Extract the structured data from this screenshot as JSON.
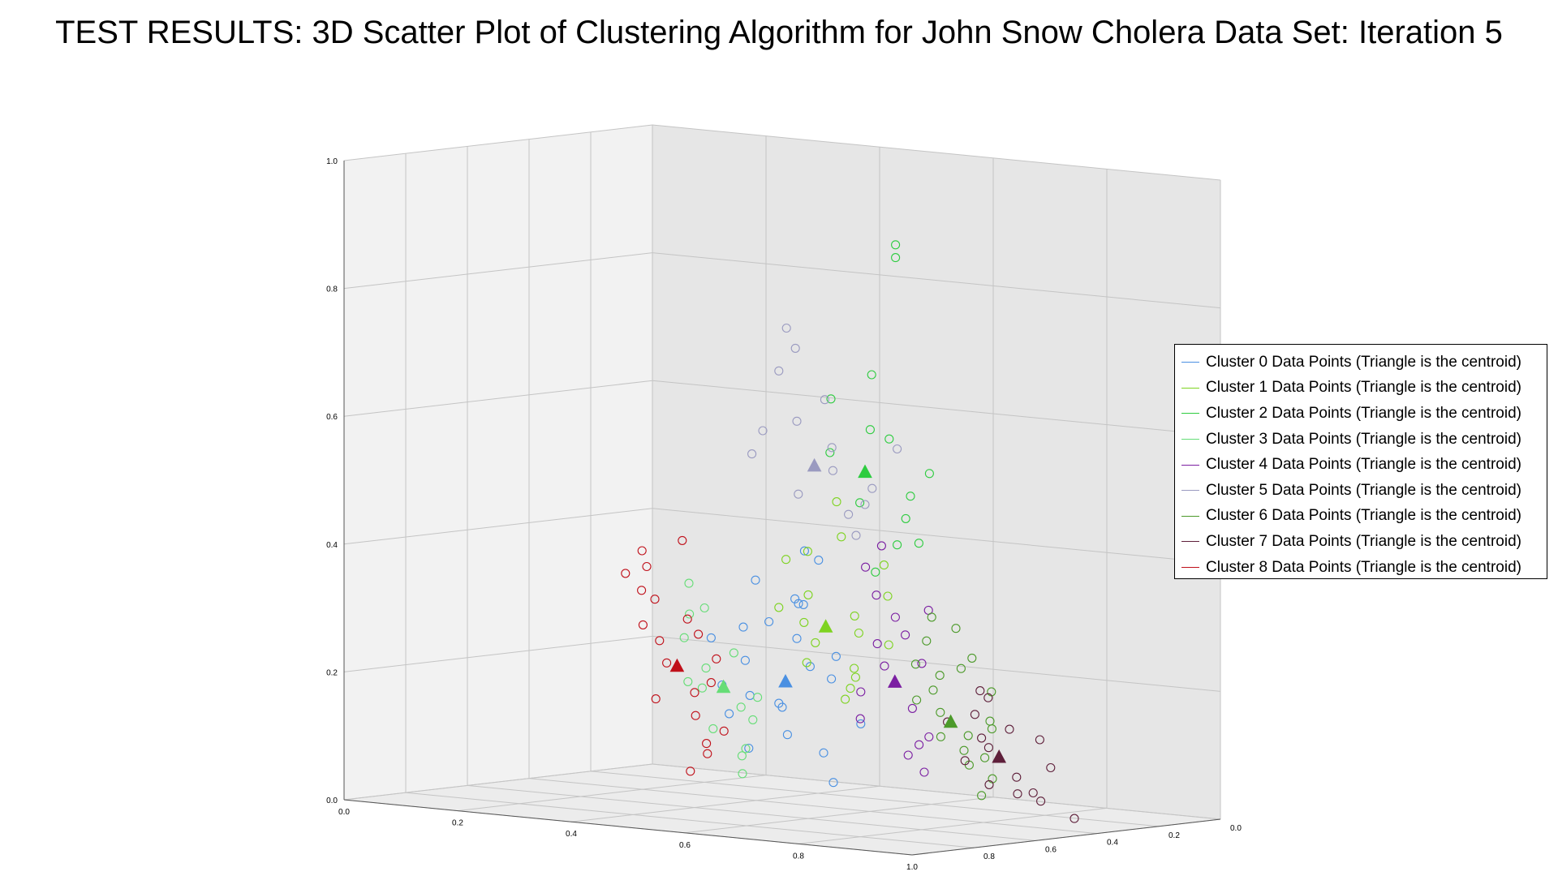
{
  "chart_data": {
    "type": "scatter",
    "title": "TEST RESULTS: 3D Scatter Plot of Clustering Algorithm for John Snow Cholera Data Set: Iteration 5",
    "xlim": [
      0,
      1
    ],
    "ylim": [
      0,
      1
    ],
    "zlim": [
      0,
      1
    ],
    "x_ticks": [
      "0.0",
      "0.2",
      "0.4",
      "0.6",
      "0.8",
      "1.0"
    ],
    "y_ticks": [
      "0.0",
      "0.2",
      "0.4",
      "0.6",
      "0.8"
    ],
    "z_ticks": [
      "0.0",
      "0.2",
      "0.4",
      "0.6",
      "0.8",
      "1.0"
    ],
    "grid": true,
    "legend_position": "right",
    "series": [
      {
        "name": "Cluster 0 Data Points (Triangle is the centroid)",
        "color": "#4a90e2",
        "centroid": [
          0.56,
          0.4,
          0.21
        ],
        "points": [
          [
            0.52,
            0.42,
            0.3
          ],
          [
            0.58,
            0.4,
            0.28
          ],
          [
            0.61,
            0.35,
            0.34
          ],
          [
            0.48,
            0.45,
            0.36
          ],
          [
            0.55,
            0.48,
            0.41
          ],
          [
            0.5,
            0.38,
            0.24
          ],
          [
            0.63,
            0.42,
            0.22
          ],
          [
            0.57,
            0.36,
            0.18
          ],
          [
            0.45,
            0.42,
            0.15
          ],
          [
            0.52,
            0.48,
            0.12
          ],
          [
            0.6,
            0.45,
            0.1
          ],
          [
            0.66,
            0.38,
            0.26
          ],
          [
            0.47,
            0.36,
            0.2
          ],
          [
            0.54,
            0.3,
            0.3
          ],
          [
            0.59,
            0.5,
            0.05
          ],
          [
            0.5,
            0.5,
            0.16
          ],
          [
            0.62,
            0.32,
            0.35
          ],
          [
            0.44,
            0.38,
            0.27
          ],
          [
            0.57,
            0.44,
            0.33
          ],
          [
            0.66,
            0.46,
            0.15
          ],
          [
            0.53,
            0.34,
            0.19
          ],
          [
            0.49,
            0.41,
            0.1
          ],
          [
            0.64,
            0.36,
            0.41
          ],
          [
            0.56,
            0.48,
            0.23
          ]
        ]
      },
      {
        "name": "Cluster 1 Data Points (Triangle is the centroid)",
        "color": "#7ed321",
        "centroid": [
          0.62,
          0.42,
          0.3
        ],
        "points": [
          [
            0.6,
            0.4,
            0.35
          ],
          [
            0.66,
            0.44,
            0.32
          ],
          [
            0.58,
            0.46,
            0.27
          ],
          [
            0.7,
            0.38,
            0.3
          ],
          [
            0.64,
            0.48,
            0.22
          ],
          [
            0.55,
            0.42,
            0.4
          ],
          [
            0.68,
            0.36,
            0.45
          ],
          [
            0.62,
            0.5,
            0.2
          ],
          [
            0.72,
            0.44,
            0.28
          ],
          [
            0.57,
            0.36,
            0.33
          ],
          [
            0.65,
            0.4,
            0.5
          ],
          [
            0.6,
            0.52,
            0.18
          ],
          [
            0.74,
            0.4,
            0.36
          ],
          [
            0.63,
            0.34,
            0.25
          ],
          [
            0.69,
            0.48,
            0.4
          ],
          [
            0.56,
            0.46,
            0.3
          ],
          [
            0.67,
            0.42,
            0.24
          ],
          [
            0.61,
            0.38,
            0.42
          ]
        ]
      },
      {
        "name": "Cluster 2 Data Points (Triangle is the centroid)",
        "color": "#2ecc40",
        "centroid": [
          0.7,
          0.4,
          0.55
        ],
        "points": [
          [
            0.72,
            0.38,
            0.62
          ],
          [
            0.68,
            0.42,
            0.5
          ],
          [
            0.75,
            0.44,
            0.48
          ],
          [
            0.66,
            0.36,
            0.58
          ],
          [
            0.78,
            0.4,
            0.52
          ],
          [
            0.71,
            0.46,
            0.6
          ],
          [
            0.8,
            0.32,
            0.45
          ],
          [
            0.64,
            0.4,
            0.66
          ],
          [
            0.74,
            0.36,
            0.4
          ],
          [
            0.86,
            0.28,
            0.46
          ],
          [
            0.69,
            0.44,
            0.7
          ],
          [
            0.77,
            0.48,
            0.55
          ],
          [
            0.96,
            0.02,
            0.95
          ],
          [
            0.96,
            0.02,
            0.93
          ]
        ]
      },
      {
        "name": "Cluster 3 Data Points (Triangle is the centroid)",
        "color": "#66dd77",
        "centroid": [
          0.44,
          0.42,
          0.19
        ],
        "points": [
          [
            0.42,
            0.4,
            0.22
          ],
          [
            0.46,
            0.44,
            0.16
          ],
          [
            0.4,
            0.46,
            0.12
          ],
          [
            0.48,
            0.38,
            0.25
          ],
          [
            0.44,
            0.48,
            0.08
          ],
          [
            0.38,
            0.42,
            0.3
          ],
          [
            0.5,
            0.42,
            0.18
          ],
          [
            0.41,
            0.36,
            0.2
          ],
          [
            0.47,
            0.46,
            0.14
          ],
          [
            0.36,
            0.44,
            0.26
          ],
          [
            0.45,
            0.34,
            0.32
          ],
          [
            0.43,
            0.5,
            0.05
          ],
          [
            0.39,
            0.4,
            0.35
          ],
          [
            0.49,
            0.4,
            0.1
          ],
          [
            0.37,
            0.48,
            0.18
          ]
        ]
      },
      {
        "name": "Cluster 4 Data Points (Triangle is the centroid)",
        "color": "#7b1fa2",
        "centroid": [
          0.72,
          0.46,
          0.22
        ],
        "points": [
          [
            0.7,
            0.44,
            0.28
          ],
          [
            0.74,
            0.48,
            0.18
          ],
          [
            0.68,
            0.5,
            0.24
          ],
          [
            0.76,
            0.42,
            0.3
          ],
          [
            0.72,
            0.4,
            0.36
          ],
          [
            0.66,
            0.46,
            0.2
          ],
          [
            0.78,
            0.46,
            0.14
          ],
          [
            0.73,
            0.52,
            0.12
          ],
          [
            0.69,
            0.42,
            0.4
          ],
          [
            0.8,
            0.4,
            0.26
          ],
          [
            0.71,
            0.48,
            0.32
          ],
          [
            0.75,
            0.5,
            0.08
          ],
          [
            0.67,
            0.44,
            0.16
          ],
          [
            0.79,
            0.44,
            0.34
          ],
          [
            0.74,
            0.38,
            0.44
          ],
          [
            0.7,
            0.54,
            0.1
          ]
        ]
      },
      {
        "name": "Cluster 5 Data Points (Triangle is the centroid)",
        "color": "#9a9ac0",
        "centroid": [
          0.6,
          0.42,
          0.55
        ],
        "points": [
          [
            0.58,
            0.4,
            0.62
          ],
          [
            0.62,
            0.44,
            0.58
          ],
          [
            0.55,
            0.46,
            0.5
          ],
          [
            0.64,
            0.38,
            0.66
          ],
          [
            0.6,
            0.48,
            0.54
          ],
          [
            0.52,
            0.4,
            0.6
          ],
          [
            0.66,
            0.42,
            0.48
          ],
          [
            0.57,
            0.36,
            0.7
          ],
          [
            0.54,
            0.44,
            0.76
          ],
          [
            0.68,
            0.46,
            0.52
          ],
          [
            0.49,
            0.42,
            0.56
          ],
          [
            0.63,
            0.5,
            0.44
          ],
          [
            0.8,
            0.32,
            0.6
          ],
          [
            0.61,
            0.34,
            0.74
          ],
          [
            0.7,
            0.4,
            0.5
          ]
        ]
      },
      {
        "name": "Cluster 6 Data Points (Triangle is the centroid)",
        "color": "#4c9a2a",
        "centroid": [
          0.84,
          0.42,
          0.17
        ],
        "points": [
          [
            0.82,
            0.4,
            0.22
          ],
          [
            0.86,
            0.44,
            0.15
          ],
          [
            0.8,
            0.46,
            0.18
          ],
          [
            0.88,
            0.38,
            0.26
          ],
          [
            0.84,
            0.48,
            0.1
          ],
          [
            0.78,
            0.42,
            0.2
          ],
          [
            0.9,
            0.42,
            0.12
          ],
          [
            0.83,
            0.36,
            0.3
          ],
          [
            0.87,
            0.5,
            0.08
          ],
          [
            0.81,
            0.44,
            0.24
          ],
          [
            0.92,
            0.4,
            0.18
          ],
          [
            0.85,
            0.34,
            0.34
          ],
          [
            0.79,
            0.48,
            0.14
          ],
          [
            0.89,
            0.46,
            0.22
          ],
          [
            0.84,
            0.52,
            0.05
          ],
          [
            0.91,
            0.36,
            0.28
          ],
          [
            0.86,
            0.4,
            0.32
          ],
          [
            0.8,
            0.38,
            0.26
          ],
          [
            0.88,
            0.48,
            0.16
          ],
          [
            0.82,
            0.5,
            0.12
          ]
        ]
      },
      {
        "name": "Cluster 7 Data Points (Triangle is the centroid)",
        "color": "#5e1f3a",
        "centroid": [
          0.86,
          0.54,
          0.11
        ],
        "points": [
          [
            0.84,
            0.52,
            0.14
          ],
          [
            0.88,
            0.56,
            0.08
          ],
          [
            0.82,
            0.58,
            0.12
          ],
          [
            0.9,
            0.5,
            0.16
          ],
          [
            0.86,
            0.6,
            0.05
          ],
          [
            0.8,
            0.54,
            0.1
          ],
          [
            0.92,
            0.54,
            0.06
          ],
          [
            0.85,
            0.48,
            0.18
          ],
          [
            0.89,
            0.62,
            0.04
          ],
          [
            0.83,
            0.56,
            0.2
          ],
          [
            0.94,
            0.56,
            0.1
          ],
          [
            0.87,
            0.46,
            0.22
          ],
          [
            0.81,
            0.6,
            0.06
          ],
          [
            0.91,
            0.58,
            0.14
          ],
          [
            0.96,
            0.6,
            0.02
          ],
          [
            0.78,
            0.52,
            0.16
          ]
        ]
      },
      {
        "name": "Cluster 8 Data Points (Triangle is the centroid)",
        "color": "#c0101a",
        "centroid": [
          0.38,
          0.38,
          0.22
        ],
        "points": [
          [
            0.36,
            0.36,
            0.26
          ],
          [
            0.4,
            0.4,
            0.18
          ],
          [
            0.34,
            0.42,
            0.22
          ],
          [
            0.42,
            0.34,
            0.3
          ],
          [
            0.38,
            0.44,
            0.14
          ],
          [
            0.32,
            0.38,
            0.28
          ],
          [
            0.44,
            0.38,
            0.2
          ],
          [
            0.35,
            0.32,
            0.34
          ],
          [
            0.41,
            0.42,
            0.1
          ],
          [
            0.33,
            0.4,
            0.32
          ],
          [
            0.46,
            0.36,
            0.24
          ],
          [
            0.37,
            0.3,
            0.38
          ],
          [
            0.31,
            0.44,
            0.16
          ],
          [
            0.43,
            0.44,
            0.12
          ],
          [
            0.3,
            0.36,
            0.36
          ],
          [
            0.39,
            0.46,
            0.08
          ],
          [
            0.45,
            0.32,
            0.28
          ],
          [
            0.34,
            0.34,
            0.4
          ],
          [
            0.4,
            0.36,
            0.42
          ],
          [
            0.36,
            0.46,
            0.05
          ]
        ]
      }
    ]
  }
}
